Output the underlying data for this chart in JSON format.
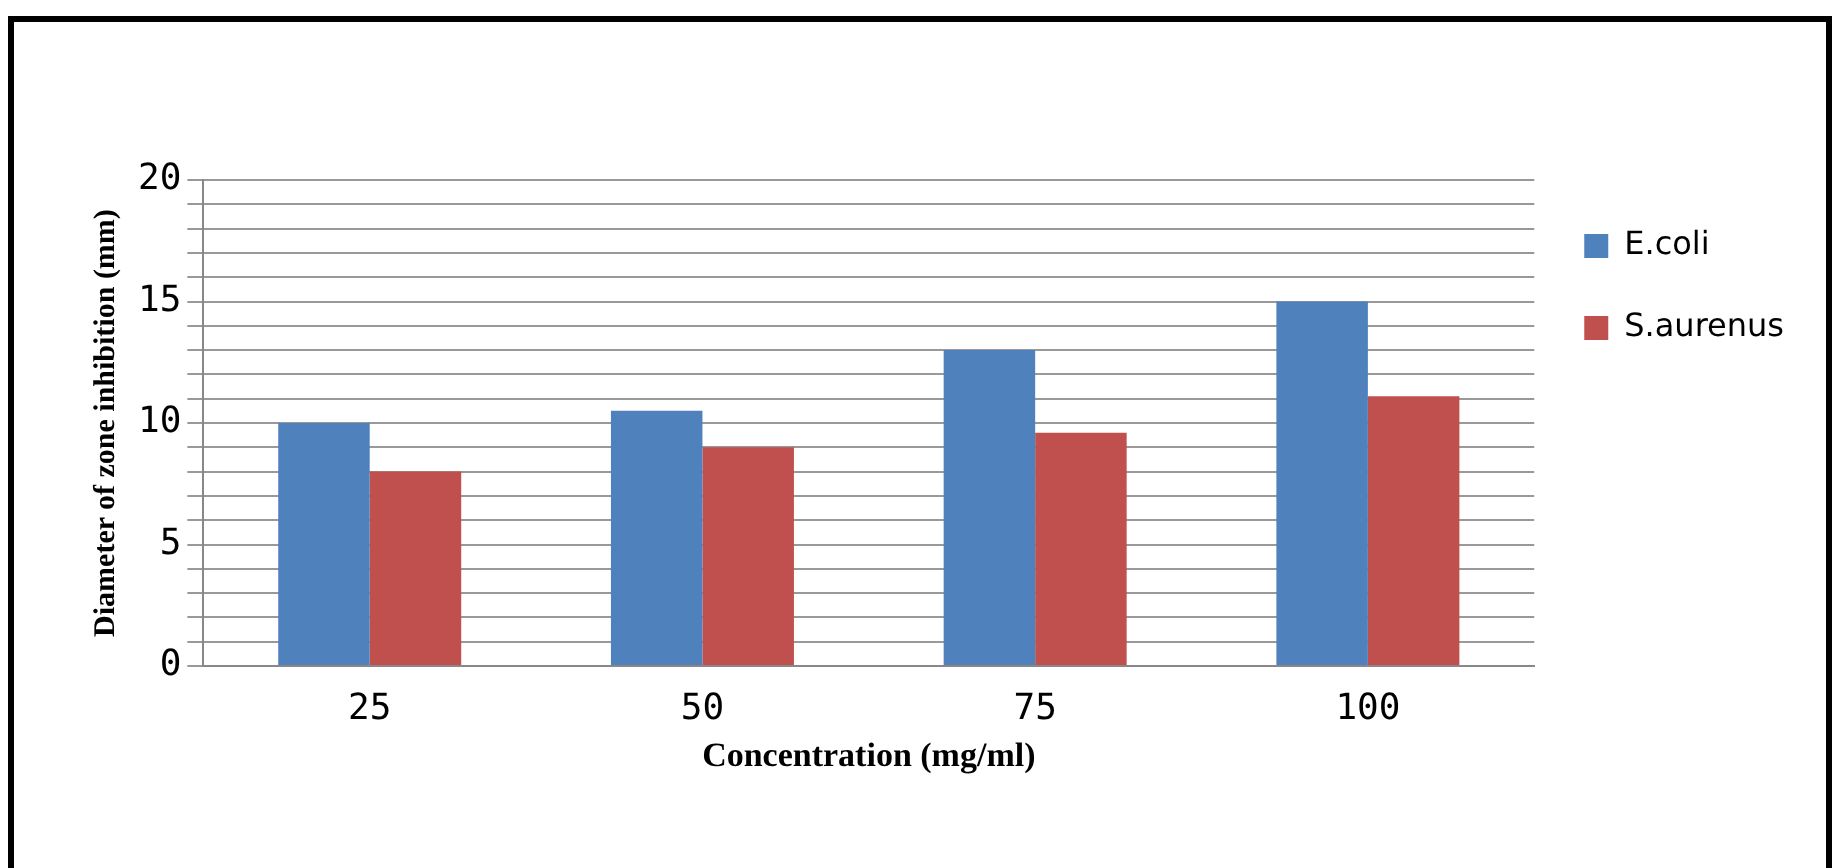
{
  "chart_data": {
    "type": "bar",
    "xlabel": "Concentration (mg/ml)",
    "ylabel": "Diameter of zone inhibition (mm)",
    "categories": [
      "25",
      "50",
      "75",
      "100"
    ],
    "series": [
      {
        "name": "E.coli",
        "color": "#4f81bd",
        "values": [
          10,
          10.5,
          13,
          15
        ]
      },
      {
        "name": "S.aurenus",
        "color": "#c0504d",
        "values": [
          8,
          9,
          9.6,
          11.1
        ]
      }
    ],
    "ylim": [
      0,
      20
    ],
    "yticks": [
      0,
      {
        "value": 1,
        "label": null
      },
      {
        "value": 2,
        "label": null
      },
      {
        "value": 3,
        "label": null
      },
      {
        "value": 4,
        "label": null
      },
      5,
      {
        "value": 6,
        "label": null
      },
      {
        "value": 7,
        "label": null
      },
      {
        "value": 8,
        "label": null
      },
      {
        "value": 9,
        "label": null
      },
      10,
      {
        "value": 11,
        "label": null
      },
      {
        "value": 12,
        "label": null
      },
      {
        "value": 13,
        "label": null
      },
      {
        "value": 14,
        "label": null
      },
      15,
      {
        "value": 16,
        "label": null
      },
      {
        "value": 17,
        "label": null
      },
      {
        "value": 18,
        "label": null
      },
      {
        "value": 19,
        "label": null
      },
      20
    ],
    "grid": "y",
    "legend": "right"
  }
}
